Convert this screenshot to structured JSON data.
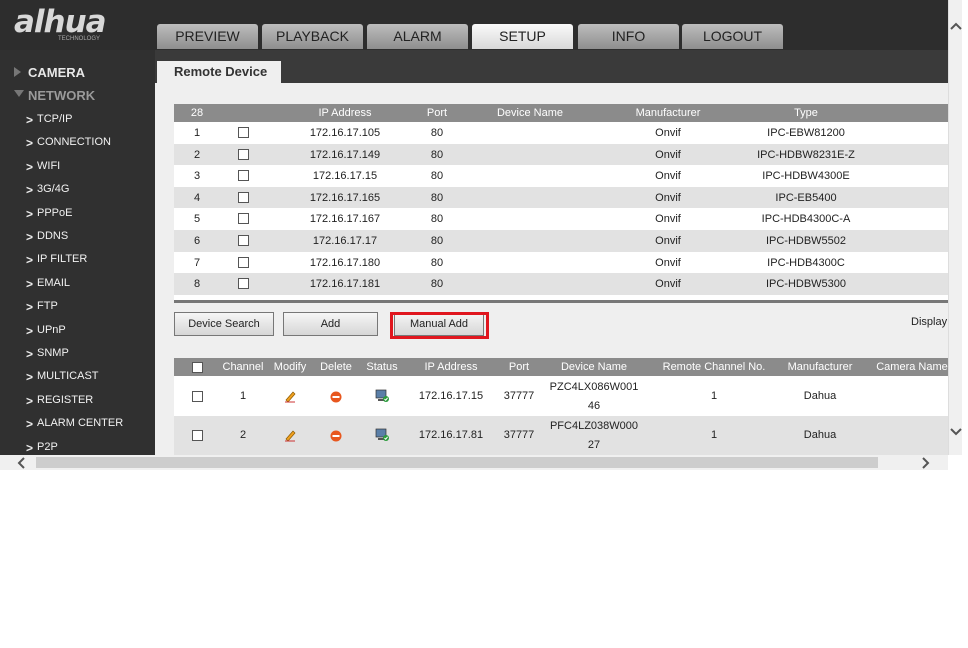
{
  "header": {
    "logo": "alhua",
    "logo_sub": "TECHNOLOGY",
    "tabs": [
      "PREVIEW",
      "PLAYBACK",
      "ALARM",
      "SETUP",
      "INFO",
      "LOGOUT"
    ]
  },
  "sidebar": {
    "sections": [
      {
        "label": "CAMERA"
      },
      {
        "label": "NETWORK",
        "items": [
          "TCP/IP",
          "CONNECTION",
          "WIFI",
          "3G/4G",
          "PPPoE",
          "DDNS",
          "IP FILTER",
          "EMAIL",
          "FTP",
          "UPnP",
          "SNMP",
          "MULTICAST",
          "REGISTER",
          "ALARM CENTER",
          "P2P"
        ]
      }
    ]
  },
  "panel": {
    "tab": "Remote Device",
    "search_table": {
      "columns": [
        "28",
        "IP Address",
        "Port",
        "Device Name",
        "Manufacturer",
        "Type"
      ],
      "rows": [
        {
          "no": "1",
          "ip": "172.16.17.105",
          "port": "80",
          "manufacturer": "Onvif",
          "type": "IPC-EBW81200"
        },
        {
          "no": "2",
          "ip": "172.16.17.149",
          "port": "80",
          "manufacturer": "Onvif",
          "type": "IPC-HDBW8231E-Z"
        },
        {
          "no": "3",
          "ip": "172.16.17.15",
          "port": "80",
          "manufacturer": "Onvif",
          "type": "IPC-HDBW4300E"
        },
        {
          "no": "4",
          "ip": "172.16.17.165",
          "port": "80",
          "manufacturer": "Onvif",
          "type": "IPC-EB5400"
        },
        {
          "no": "5",
          "ip": "172.16.17.167",
          "port": "80",
          "manufacturer": "Onvif",
          "type": "IPC-HDB4300C-A"
        },
        {
          "no": "6",
          "ip": "172.16.17.17",
          "port": "80",
          "manufacturer": "Onvif",
          "type": "IPC-HDBW5502"
        },
        {
          "no": "7",
          "ip": "172.16.17.180",
          "port": "80",
          "manufacturer": "Onvif",
          "type": "IPC-HDB4300C"
        },
        {
          "no": "8",
          "ip": "172.16.17.181",
          "port": "80",
          "manufacturer": "Onvif",
          "type": "IPC-HDBW5300"
        }
      ]
    },
    "buttons": [
      "Device Search",
      "Add",
      "Manual Add"
    ],
    "display_label": "Display",
    "added_table": {
      "columns": [
        "Channel",
        "Modify",
        "Delete",
        "Status",
        "IP Address",
        "Port",
        "Device Name",
        "Remote Channel No.",
        "Manufacturer",
        "Camera Name"
      ],
      "rows": [
        {
          "channel": "1",
          "ip": "172.16.17.15",
          "port": "37777",
          "device_name_lines": [
            "PZC4LX086W001",
            "46"
          ],
          "remote_channel": "1",
          "manufacturer": "Dahua"
        },
        {
          "channel": "2",
          "ip": "172.16.17.81",
          "port": "37777",
          "device_name_lines": [
            "PFC4LZ038W000",
            "27"
          ],
          "remote_channel": "1",
          "manufacturer": "Dahua"
        }
      ]
    }
  }
}
